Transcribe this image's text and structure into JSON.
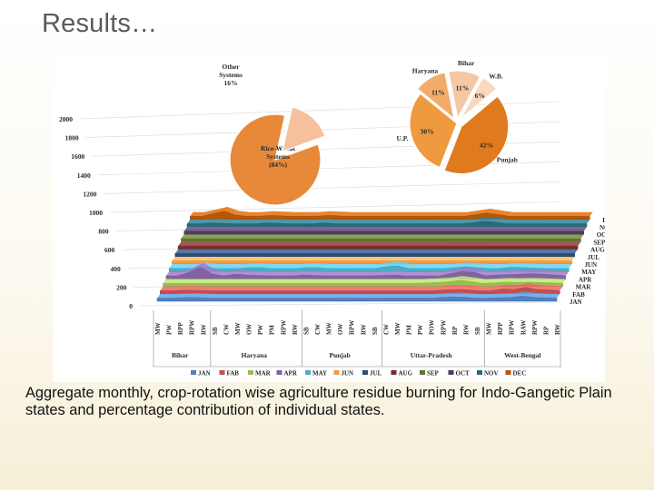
{
  "slide": {
    "title": "Results…",
    "caption": "Aggregate monthly, crop-rotation wise agriculture residue burning for Indo-Gangetic Plain states and percentage contribution of individual states."
  },
  "chart_data": [
    {
      "type": "area",
      "subtype": "3d-stacked-ribbons",
      "ylim": [
        0,
        2000
      ],
      "yticks": [
        0,
        200,
        400,
        600,
        800,
        1000,
        1200,
        1400,
        1600,
        1800,
        2000
      ],
      "grid": true,
      "legend_position": "bottom",
      "categories": [
        "MW",
        "PW",
        "RPP",
        "RPW",
        "RW",
        "SB",
        "CW",
        "MW",
        "OW",
        "PW",
        "PM",
        "RPW",
        "RW",
        "SB",
        "CW",
        "MW",
        "OW",
        "RPW",
        "RW",
        "SB",
        "CW",
        "MW",
        "PM",
        "PW",
        "POW",
        "RPW",
        "RP",
        "RW",
        "SB",
        "MW",
        "RPP",
        "RPW",
        "RAW",
        "RPW",
        "RP",
        "RW"
      ],
      "groups": [
        {
          "label": "Bihar",
          "start": 0,
          "end": 4
        },
        {
          "label": "Haryana",
          "start": 5,
          "end": 12
        },
        {
          "label": "Punjab",
          "start": 13,
          "end": 19
        },
        {
          "label": "Uttar-Pradesh",
          "start": 20,
          "end": 28
        },
        {
          "label": "West-Bengal",
          "start": 29,
          "end": 35
        }
      ],
      "series": [
        {
          "name": "JAN",
          "color": "#4f81bd",
          "values": [
            0,
            0,
            5,
            10,
            5,
            0,
            0,
            0,
            0,
            0,
            0,
            0,
            0,
            0,
            0,
            0,
            0,
            0,
            0,
            0,
            0,
            0,
            0,
            0,
            0,
            10,
            15,
            10,
            0,
            0,
            5,
            10,
            25,
            10,
            5,
            0
          ]
        },
        {
          "name": "FAB",
          "color": "#c0504d",
          "values": [
            0,
            0,
            5,
            5,
            0,
            0,
            0,
            0,
            0,
            0,
            0,
            0,
            0,
            0,
            0,
            0,
            0,
            0,
            0,
            0,
            0,
            0,
            0,
            0,
            0,
            10,
            15,
            10,
            0,
            0,
            20,
            15,
            40,
            15,
            10,
            0
          ]
        },
        {
          "name": "MAR",
          "color": "#9bbb59",
          "values": [
            0,
            0,
            0,
            0,
            0,
            0,
            0,
            0,
            0,
            0,
            0,
            0,
            0,
            0,
            0,
            0,
            0,
            0,
            0,
            0,
            0,
            0,
            0,
            5,
            10,
            20,
            35,
            20,
            0,
            5,
            15,
            10,
            15,
            10,
            5,
            0
          ]
        },
        {
          "name": "APR",
          "color": "#8064a2",
          "values": [
            0,
            0,
            40,
            100,
            25,
            0,
            20,
            10,
            5,
            0,
            0,
            0,
            10,
            5,
            0,
            0,
            0,
            0,
            0,
            5,
            10,
            0,
            0,
            0,
            0,
            30,
            50,
            40,
            0,
            10,
            15,
            20,
            25,
            20,
            10,
            0
          ]
        },
        {
          "name": "MAY",
          "color": "#4bacc6",
          "values": [
            0,
            0,
            0,
            20,
            0,
            0,
            0,
            10,
            10,
            0,
            0,
            0,
            10,
            10,
            0,
            0,
            0,
            0,
            0,
            20,
            30,
            0,
            0,
            0,
            0,
            10,
            20,
            10,
            0,
            0,
            15,
            10,
            5,
            0,
            0,
            0
          ]
        },
        {
          "name": "JUN",
          "color": "#f79646",
          "values": [
            0,
            0,
            0,
            0,
            0,
            0,
            0,
            0,
            0,
            0,
            0,
            0,
            0,
            0,
            0,
            0,
            0,
            0,
            0,
            0,
            0,
            0,
            0,
            0,
            0,
            0,
            0,
            0,
            0,
            0,
            0,
            0,
            0,
            0,
            0,
            0
          ]
        },
        {
          "name": "JUL",
          "color": "#2c4d75",
          "values": [
            0,
            0,
            0,
            0,
            0,
            0,
            0,
            0,
            0,
            0,
            0,
            0,
            0,
            0,
            0,
            0,
            0,
            0,
            0,
            0,
            0,
            0,
            0,
            0,
            0,
            0,
            0,
            0,
            0,
            0,
            0,
            0,
            0,
            0,
            0,
            0
          ]
        },
        {
          "name": "AUG",
          "color": "#772c2a",
          "values": [
            0,
            0,
            0,
            0,
            0,
            0,
            0,
            0,
            0,
            0,
            0,
            0,
            0,
            0,
            0,
            0,
            0,
            0,
            0,
            0,
            0,
            0,
            0,
            0,
            0,
            0,
            0,
            0,
            0,
            0,
            0,
            0,
            0,
            0,
            0,
            0
          ]
        },
        {
          "name": "SEP",
          "color": "#5f7530",
          "values": [
            0,
            0,
            0,
            0,
            0,
            0,
            0,
            0,
            0,
            0,
            0,
            0,
            0,
            0,
            0,
            0,
            0,
            0,
            0,
            0,
            0,
            0,
            0,
            0,
            0,
            0,
            0,
            0,
            0,
            0,
            0,
            0,
            0,
            0,
            0,
            0
          ]
        },
        {
          "name": "OCT",
          "color": "#4d3b62",
          "values": [
            0,
            0,
            0,
            0,
            0,
            0,
            0,
            0,
            0,
            0,
            0,
            0,
            0,
            0,
            0,
            0,
            0,
            0,
            0,
            0,
            0,
            0,
            0,
            0,
            0,
            0,
            0,
            0,
            0,
            0,
            0,
            0,
            0,
            0,
            0,
            0
          ]
        },
        {
          "name": "NOV",
          "color": "#276a7c",
          "values": [
            0,
            0,
            10,
            5,
            0,
            0,
            0,
            10,
            5,
            0,
            0,
            0,
            10,
            0,
            0,
            0,
            0,
            0,
            0,
            0,
            0,
            0,
            0,
            0,
            0,
            10,
            30,
            20,
            0,
            0,
            0,
            0,
            0,
            0,
            0,
            0
          ]
        },
        {
          "name": "DEC",
          "color": "#b65708",
          "values": [
            0,
            0,
            30,
            60,
            15,
            0,
            0,
            10,
            5,
            0,
            0,
            0,
            10,
            5,
            0,
            0,
            0,
            0,
            0,
            0,
            0,
            0,
            0,
            0,
            0,
            20,
            40,
            20,
            0,
            0,
            0,
            0,
            0,
            0,
            0,
            0
          ]
        }
      ]
    },
    {
      "type": "pie",
      "slices": [
        {
          "label": "Rice-Wheat Systems",
          "value_label": "(84%)",
          "value": 84,
          "color": "#e8893a"
        },
        {
          "label": "Other Systems",
          "value_label": "16%",
          "value": 16,
          "color": "#f6c09d"
        }
      ]
    },
    {
      "type": "pie",
      "slices": [
        {
          "label": "Punjab",
          "value_label": "42%",
          "value": 42,
          "color": "#e07a1f"
        },
        {
          "label": "U.P.",
          "value_label": "30%",
          "value": 30,
          "color": "#ee9a3f"
        },
        {
          "label": "Haryana",
          "value_label": "11%",
          "value": 11,
          "color": "#f2ab68"
        },
        {
          "label": "Bihar",
          "value_label": "11%",
          "value": 11,
          "color": "#f6c7a2"
        },
        {
          "label": "W.B.",
          "value_label": "6%",
          "value": 6,
          "color": "#f9d8c0"
        }
      ]
    }
  ]
}
